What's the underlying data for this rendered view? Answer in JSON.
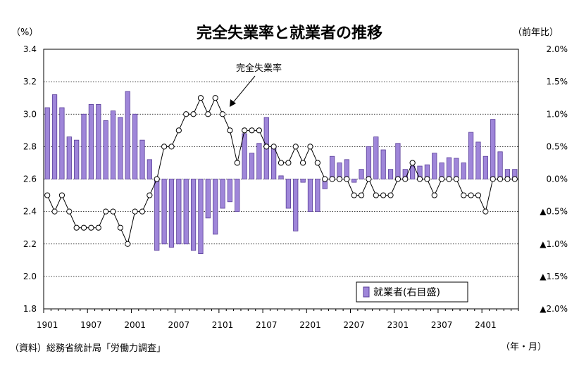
{
  "chart_data": {
    "type": "bar+line",
    "title": "完全失業率と就業者の推移",
    "left_unit": "（%）",
    "right_unit": "（前年比）",
    "x_unit": "（年・月）",
    "source": "（資料）総務省統計局「労働力調査」",
    "line_annotation": "完全失業率",
    "legend": {
      "label": "就業者(右目盛)",
      "placement": "bottom-right"
    },
    "colors": {
      "bar_fill": "#9f86d9",
      "bar_stroke": "#5a3f99",
      "line": "#000000",
      "marker_fill": "#ffffff"
    },
    "grid": true,
    "yleft": {
      "min": 1.8,
      "max": 3.4,
      "ticks": [
        "1.8",
        "2.0",
        "2.2",
        "2.4",
        "2.6",
        "2.8",
        "3.0",
        "3.2",
        "3.4"
      ]
    },
    "yright": {
      "min": -2.0,
      "max": 2.0,
      "ticks": [
        "▲2.0%",
        "▲1.5%",
        "▲1.0%",
        "▲0.5%",
        "0.0%",
        "0.5%",
        "1.0%",
        "1.5%",
        "2.0%"
      ]
    },
    "x_tick_labels": [
      "1901",
      "1907",
      "2001",
      "2007",
      "2101",
      "2107",
      "2201",
      "2207",
      "2301",
      "2307",
      "2401"
    ],
    "x": [
      "1901",
      "1902",
      "1903",
      "1904",
      "1905",
      "1906",
      "1907",
      "1908",
      "1909",
      "1910",
      "1911",
      "1912",
      "2001",
      "2002",
      "2003",
      "2004",
      "2005",
      "2006",
      "2007",
      "2008",
      "2009",
      "2010",
      "2011",
      "2012",
      "2101",
      "2102",
      "2103",
      "2104",
      "2105",
      "2106",
      "2107",
      "2108",
      "2109",
      "2110",
      "2111",
      "2112",
      "2201",
      "2202",
      "2203",
      "2204",
      "2205",
      "2206",
      "2207",
      "2208",
      "2209",
      "2210",
      "2211",
      "2212",
      "2301",
      "2302",
      "2303",
      "2304",
      "2305",
      "2306",
      "2307",
      "2308",
      "2309",
      "2310",
      "2311",
      "2312",
      "2401",
      "2402",
      "2403",
      "2404",
      "2405"
    ],
    "series": [
      {
        "name": "就業者(右目盛)",
        "type": "bar",
        "axis": "right",
        "values": [
          1.1,
          1.3,
          1.1,
          0.65,
          0.6,
          1.0,
          1.15,
          1.15,
          0.9,
          1.05,
          0.95,
          1.35,
          1.0,
          0.6,
          0.3,
          -1.1,
          -1.0,
          -1.05,
          -1.0,
          -1.0,
          -1.1,
          -1.15,
          -0.6,
          -0.85,
          -0.45,
          -0.35,
          -0.5,
          0.7,
          0.4,
          0.55,
          0.95,
          0.5,
          0.05,
          -0.45,
          -0.8,
          -0.05,
          -0.5,
          -0.5,
          -0.15,
          0.35,
          0.25,
          0.3,
          -0.05,
          0.15,
          0.5,
          0.65,
          0.45,
          0.15,
          0.55,
          0.15,
          0.2,
          0.2,
          0.22,
          0.4,
          0.25,
          0.33,
          0.32,
          0.25,
          0.72,
          0.57,
          0.35,
          0.92,
          0.42,
          0.15,
          0.15
        ]
      },
      {
        "name": "",
        "type": "line",
        "axis": "left",
        "values": [
          2.5,
          2.4,
          2.5,
          2.4,
          2.3,
          2.3,
          2.3,
          2.3,
          2.4,
          2.4,
          2.3,
          2.2,
          2.4,
          2.4,
          2.5,
          2.6,
          2.8,
          2.8,
          2.9,
          3.0,
          3.0,
          3.1,
          3.0,
          3.1,
          3.0,
          2.9,
          2.7,
          2.9,
          2.9,
          2.9,
          2.8,
          2.8,
          2.7,
          2.7,
          2.8,
          2.7,
          2.8,
          2.7,
          2.6,
          2.6,
          2.6,
          2.6,
          2.5,
          2.5,
          2.6,
          2.5,
          2.5,
          2.5,
          2.6,
          2.6,
          2.7,
          2.6,
          2.6,
          2.5,
          2.6,
          2.6,
          2.6,
          2.5,
          2.5,
          2.5,
          2.4,
          2.6,
          2.6,
          2.6,
          2.6
        ]
      }
    ]
  }
}
